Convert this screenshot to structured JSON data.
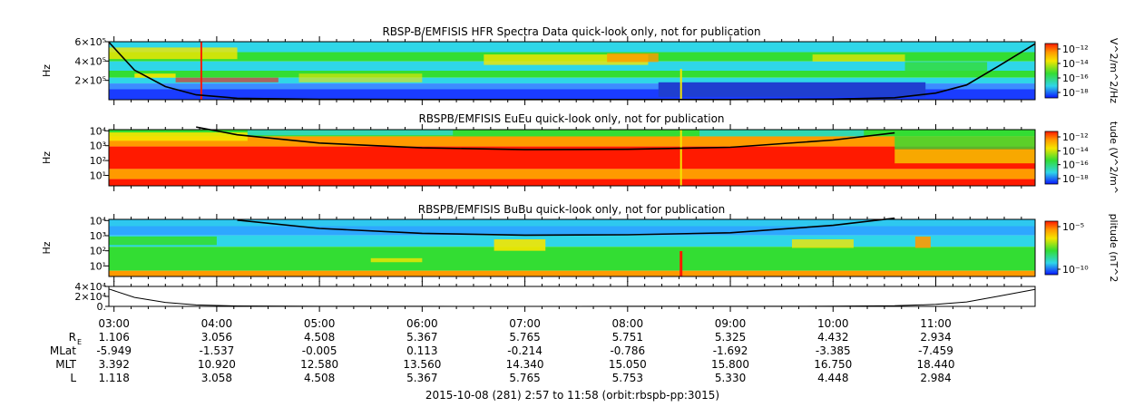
{
  "figure": {
    "xaxis": {
      "tick_labels": [
        "03:00",
        "04:00",
        "05:00",
        "06:00",
        "07:00",
        "08:00",
        "09:00",
        "10:00",
        "11:00"
      ],
      "ephemeris": [
        {
          "name": "R_E",
          "label": "R",
          "sub": "E",
          "values": [
            "1.106",
            "3.056",
            "4.508",
            "5.367",
            "5.765",
            "5.751",
            "5.325",
            "4.432",
            "2.934"
          ]
        },
        {
          "name": "MLat",
          "label": "MLat",
          "sub": "",
          "values": [
            "-5.949",
            "-1.537",
            "-0.005",
            "0.113",
            "-0.214",
            "-0.786",
            "-1.692",
            "-3.385",
            "-7.459"
          ]
        },
        {
          "name": "MLT",
          "label": "MLT",
          "sub": "",
          "values": [
            "3.392",
            "10.920",
            "12.580",
            "13.560",
            "14.340",
            "15.050",
            "15.800",
            "16.750",
            "18.440"
          ]
        },
        {
          "name": "L",
          "label": "L",
          "sub": "",
          "values": [
            "1.118",
            "3.058",
            "4.508",
            "5.367",
            "5.765",
            "5.753",
            "5.330",
            "4.448",
            "2.984"
          ]
        }
      ],
      "footer": "2015-10-08 (281) 2:57 to 11:58 (orbit:rbspb-pp:3015)"
    },
    "colors": {
      "blue": "#1a3cff",
      "cyan": "#2fd6e8",
      "green": "#33dd33",
      "yellow": "#f5e600",
      "orange": "#ff9a00",
      "red": "#ff1a00",
      "black": "#000000"
    }
  },
  "chart_data": [
    {
      "type": "heatmap",
      "name": "HFR Spectra",
      "title": "RBSP-B/EMFISIS  HFR Spectra Data quick-look only, not for publication",
      "ylabel": "Hz",
      "yscale": "linear",
      "ylim": [
        0,
        600000
      ],
      "yticks": [
        {
          "v": 200000,
          "label": "2×10⁵"
        },
        {
          "v": 400000,
          "label": "4×10⁵"
        },
        {
          "v": 600000,
          "label": "6×10⁵"
        }
      ],
      "x_range_hours": [
        2.95,
        11.967
      ],
      "colorbar": {
        "label": "V^2/m^2/Hz",
        "ticks": [
          "10⁻¹²",
          "10⁻¹⁴",
          "10⁻¹⁶",
          "10⁻¹⁸"
        ]
      }
    },
    {
      "type": "heatmap",
      "name": "EuEu",
      "title": "RBSPB/EMFISIS  EuEu quick-look only, not for publication",
      "ylabel": "Hz",
      "yscale": "log",
      "ylim": [
        2,
        12000
      ],
      "yticks": [
        {
          "v": 10,
          "label": "10¹"
        },
        {
          "v": 100,
          "label": "10²"
        },
        {
          "v": 1000,
          "label": "10³"
        },
        {
          "v": 10000,
          "label": "10⁴"
        }
      ],
      "x_range_hours": [
        2.95,
        11.967
      ],
      "colorbar": {
        "label": "tude (V^2/m^",
        "ticks": [
          "10⁻¹²",
          "10⁻¹⁴",
          "10⁻¹⁶",
          "10⁻¹⁸"
        ]
      }
    },
    {
      "type": "heatmap",
      "name": "BuBu",
      "title": "RBSPB/EMFISIS  BuBu quick-look only, not for publication",
      "ylabel": "Hz",
      "yscale": "log",
      "ylim": [
        2,
        12000
      ],
      "yticks": [
        {
          "v": 10,
          "label": "10¹"
        },
        {
          "v": 100,
          "label": "10²"
        },
        {
          "v": 1000,
          "label": "10³"
        },
        {
          "v": 10000,
          "label": "10⁴"
        }
      ],
      "x_range_hours": [
        2.95,
        11.967
      ],
      "colorbar": {
        "label": "plitude (nT^2",
        "ticks": [
          "10⁻⁵",
          "10⁻¹⁰"
        ]
      }
    },
    {
      "type": "line",
      "name": "Cyclotron frequency",
      "ylabel": "",
      "ylim": [
        0,
        40000
      ],
      "yticks": [
        {
          "v": 0,
          "label": "0."
        },
        {
          "v": 20000,
          "label": "2×10⁴"
        },
        {
          "v": 40000,
          "label": "4×10⁴"
        }
      ],
      "x": [
        2.95,
        3.2,
        3.5,
        3.8,
        4.2,
        5.0,
        6.0,
        7.0,
        8.0,
        9.0,
        10.0,
        10.6,
        11.0,
        11.3,
        11.6,
        11.967
      ],
      "y": [
        35000,
        18000,
        8000,
        3000,
        900,
        250,
        120,
        90,
        95,
        130,
        400,
        1200,
        4000,
        9000,
        20000,
        34000
      ]
    }
  ]
}
